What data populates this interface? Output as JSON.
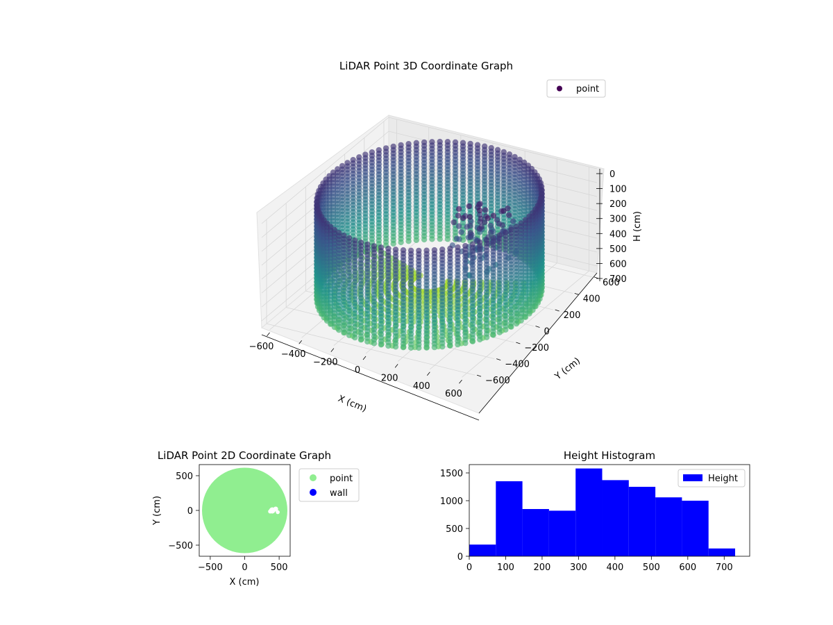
{
  "colors": {
    "viridis_low": "#440154",
    "viridis_mid": "#31688e",
    "viridis_teal": "#21918c",
    "viridis_high": "#b5de2b",
    "point2d": "#90ee90",
    "wall": "#0000ff",
    "histogram": "#0000ff"
  },
  "chart_data": [
    {
      "type": "scatter3d",
      "title": "LiDAR Point 3D Coordinate Graph",
      "xlabel": "X (cm)",
      "ylabel": "Y (cm)",
      "zlabel": "H (cm)",
      "x_ticks": [
        "−600",
        "−400",
        "−200",
        "0",
        "200",
        "400",
        "600"
      ],
      "y_ticks": [
        "−600",
        "−400",
        "−200",
        "0",
        "200",
        "400",
        "600"
      ],
      "z_ticks": [
        "0",
        "100",
        "200",
        "300",
        "400",
        "500",
        "600",
        "700"
      ],
      "xlim": [
        -650,
        650
      ],
      "ylim": [
        -650,
        650
      ],
      "zlim": [
        0,
        750
      ],
      "z_inverted": true,
      "legend": {
        "entries": [
          "point"
        ],
        "placement": "top-right"
      },
      "series": [
        {
          "name": "point",
          "description_values": {
            "wall_radius": 600,
            "wall_height_range": [
              0,
              700
            ],
            "obstacle_center": [
              380,
              0
            ],
            "obstacle_radius": 90
          }
        }
      ]
    },
    {
      "type": "scatter",
      "title": "LiDAR Point 2D Coordinate Graph",
      "xlabel": "X (cm)",
      "ylabel": "Y (cm)",
      "x_ticks": [
        "−500",
        "0",
        "500"
      ],
      "y_ticks": [
        "500",
        "0",
        "−500"
      ],
      "xlim": [
        -660,
        660
      ],
      "ylim": [
        -660,
        660
      ],
      "legend": {
        "entries": [
          "point",
          "wall"
        ],
        "placement": "outside-right"
      },
      "series": [
        {
          "name": "point",
          "shape": "disk",
          "radius": 620
        },
        {
          "name": "wall",
          "shape": "points"
        }
      ]
    },
    {
      "type": "bar",
      "title": "Height Histogram",
      "xlabel": "",
      "ylabel": "",
      "x_ticks": [
        "0",
        "100",
        "200",
        "300",
        "400",
        "500",
        "600",
        "700"
      ],
      "y_ticks": [
        "0",
        "500",
        "1000",
        "1500"
      ],
      "xlim": [
        0,
        770
      ],
      "ylim": [
        0,
        1650
      ],
      "bin_edges": [
        0,
        73,
        146,
        219,
        292,
        365,
        438,
        511,
        584,
        657,
        730
      ],
      "values": [
        210,
        1350,
        850,
        820,
        1580,
        1370,
        1250,
        1060,
        1000,
        140
      ],
      "legend": {
        "entries": [
          "Height"
        ],
        "placement": "top-right"
      },
      "series": [
        {
          "name": "Height"
        }
      ]
    }
  ]
}
